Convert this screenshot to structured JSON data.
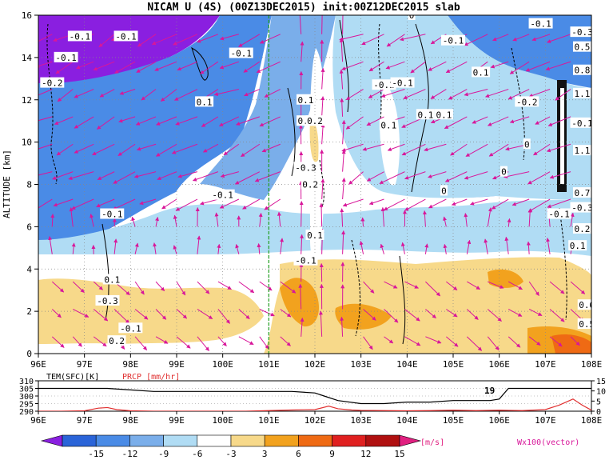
{
  "chart_data": [
    {
      "type": "heatmap",
      "title": "NICAM U (4S) (00Z13DEC2015) init:00Z12DEC2015 slab",
      "ylabel": "ALTITUDE [km]",
      "xlabel": "",
      "x_ticks": [
        "96E",
        "97E",
        "98E",
        "99E",
        "100E",
        "101E",
        "102E",
        "103E",
        "104E",
        "105E",
        "106E",
        "107E",
        "108E"
      ],
      "y_ticks": [
        "0",
        "2",
        "4",
        "6",
        "8",
        "10",
        "12",
        "14",
        "16"
      ],
      "xlim": [
        96,
        108
      ],
      "ylim": [
        0,
        16
      ],
      "grid": true,
      "marker_line_lon": 101.0,
      "colorbar": {
        "ticks": [
          "-15",
          "-12",
          "-9",
          "-6",
          "-3",
          "3",
          "6",
          "9",
          "12",
          "15"
        ],
        "unit": "[m/s]",
        "colors": [
          "#8a1fe0",
          "#2a64d8",
          "#4a8be6",
          "#7aaeea",
          "#b0dcf4",
          "#ffffff",
          "#f7d98a",
          "#f2a21e",
          "#ef6a14",
          "#e02020",
          "#b01010",
          "#e02080"
        ]
      },
      "vector_label": "Wx100(vector)",
      "contour_labels": [
        {
          "text": "-0.1",
          "lon": 96.9,
          "alt": 15.0
        },
        {
          "text": "-0.1",
          "lon": 97.9,
          "alt": 15.0
        },
        {
          "text": "-0.1",
          "lon": 96.6,
          "alt": 14.0
        },
        {
          "text": "-0.2",
          "lon": 96.3,
          "alt": 12.8
        },
        {
          "text": "-0.1",
          "lon": 100.4,
          "alt": 14.2
        },
        {
          "text": "0.1",
          "lon": 99.6,
          "alt": 11.9
        },
        {
          "text": "0.1",
          "lon": 101.8,
          "alt": 12.0
        },
        {
          "text": "0.2",
          "lon": 101.8,
          "alt": 11.0
        },
        {
          "text": "0.2",
          "lon": 102.0,
          "alt": 11.0
        },
        {
          "text": "-0.3",
          "lon": 101.8,
          "alt": 8.8
        },
        {
          "text": "0.2",
          "lon": 101.9,
          "alt": 8.0
        },
        {
          "text": "-0.1",
          "lon": 100.0,
          "alt": 7.5
        },
        {
          "text": "-0.1",
          "lon": 97.6,
          "alt": 6.6
        },
        {
          "text": "0.1",
          "lon": 102.0,
          "alt": 5.6
        },
        {
          "text": "-0.1",
          "lon": 101.8,
          "alt": 4.4
        },
        {
          "text": "-0.2",
          "lon": 103.5,
          "alt": 12.7
        },
        {
          "text": "-0.1",
          "lon": 103.9,
          "alt": 12.8
        },
        {
          "text": "0.1",
          "lon": 103.6,
          "alt": 10.8
        },
        {
          "text": "0.1",
          "lon": 104.4,
          "alt": 11.3
        },
        {
          "text": "0.1",
          "lon": 104.8,
          "alt": 11.3
        },
        {
          "text": "-0.1",
          "lon": 105.0,
          "alt": 14.8
        },
        {
          "text": "0.1",
          "lon": 105.6,
          "alt": 13.3
        },
        {
          "text": "-0.2",
          "lon": 106.6,
          "alt": 11.9
        },
        {
          "text": "0",
          "lon": 106.1,
          "alt": 8.6
        },
        {
          "text": "0",
          "lon": 106.6,
          "alt": 9.9
        },
        {
          "text": "0",
          "lon": 104.8,
          "alt": 7.7
        },
        {
          "text": "0",
          "lon": 104.1,
          "alt": 16.0
        },
        {
          "text": "-0.1",
          "lon": 106.9,
          "alt": 15.6
        },
        {
          "text": "-0.1",
          "lon": 107.3,
          "alt": 6.6
        },
        {
          "text": "0.1",
          "lon": 97.6,
          "alt": 3.5
        },
        {
          "text": "-0.3",
          "lon": 97.5,
          "alt": 2.5
        },
        {
          "text": "-0.1",
          "lon": 98.0,
          "alt": 1.2
        },
        {
          "text": "0.2",
          "lon": 97.7,
          "alt": 0.6
        },
        {
          "text": "-0.3",
          "lon": 107.8,
          "alt": 15.2
        },
        {
          "text": "0.5",
          "lon": 107.8,
          "alt": 14.5
        },
        {
          "text": "0.8",
          "lon": 107.8,
          "alt": 13.4
        },
        {
          "text": "1.1",
          "lon": 107.8,
          "alt": 12.3
        },
        {
          "text": "1.1",
          "lon": 107.8,
          "alt": 9.6
        },
        {
          "text": "-0.1",
          "lon": 107.8,
          "alt": 10.9
        },
        {
          "text": "0.7",
          "lon": 107.8,
          "alt": 7.6
        },
        {
          "text": "-0.3",
          "lon": 107.8,
          "alt": 6.9
        },
        {
          "text": "0.2",
          "lon": 107.8,
          "alt": 5.9
        },
        {
          "text": "0.1",
          "lon": 107.7,
          "alt": 5.1
        },
        {
          "text": "0.5",
          "lon": 107.9,
          "alt": 1.4
        },
        {
          "text": "0.6",
          "lon": 107.9,
          "alt": 2.3
        }
      ]
    },
    {
      "type": "line",
      "x_ticks": [
        "96E",
        "97E",
        "98E",
        "99E",
        "100E",
        "101E",
        "102E",
        "103E",
        "104E",
        "105E",
        "106E",
        "107E",
        "108E"
      ],
      "xlim": [
        96,
        108
      ],
      "left_axis": {
        "label": "TEM(SFC)[K]",
        "ticks": [
          "290",
          "295",
          "300",
          "305",
          "310"
        ],
        "ylim": [
          290,
          310
        ]
      },
      "right_axis": {
        "label": "PRCP [mm/hr]",
        "ticks": [
          "0",
          "5",
          "10",
          "15"
        ],
        "ylim": [
          0,
          15
        ]
      },
      "annotation": "19",
      "series": [
        {
          "name": "TEM(SFC)[K]",
          "color": "#000000",
          "x": [
            96,
            96.5,
            97,
            97.5,
            98,
            98.5,
            99,
            99.5,
            100,
            100.5,
            101,
            101.5,
            102,
            102.2,
            102.5,
            103,
            103.5,
            104,
            104.5,
            105,
            105.5,
            105.8,
            106,
            106.2,
            106.5,
            107,
            107.5,
            108
          ],
          "y": [
            305,
            305,
            305,
            305,
            304,
            303,
            303,
            303,
            303,
            303,
            303,
            303,
            302,
            300,
            297,
            295,
            295,
            296,
            296,
            297,
            297,
            297,
            298,
            305,
            305,
            305,
            305,
            305
          ]
        },
        {
          "name": "PRCP [mm/hr]",
          "color": "#e03030",
          "x": [
            96,
            96.5,
            97,
            97.3,
            97.5,
            97.7,
            98,
            98.5,
            99,
            99.5,
            100,
            100.5,
            101,
            101.5,
            102,
            102.3,
            102.5,
            102.8,
            103,
            103.5,
            104,
            104.5,
            105,
            105.5,
            106,
            106.5,
            107,
            107.3,
            107.6,
            107.8,
            108
          ],
          "y": [
            0,
            0,
            0.2,
            1.5,
            1.8,
            0.8,
            0.2,
            0,
            0,
            0,
            0,
            0,
            0.3,
            0.6,
            0.8,
            2.5,
            1.2,
            0.6,
            0.4,
            0.3,
            0.2,
            0.3,
            0.5,
            0.3,
            0.5,
            0.3,
            0.8,
            3,
            6,
            3,
            0.5
          ]
        }
      ]
    }
  ]
}
